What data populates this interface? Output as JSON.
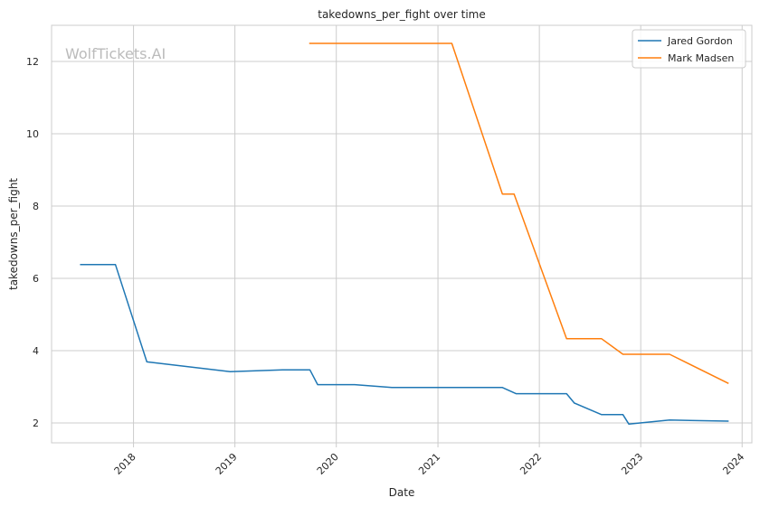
{
  "chart_data": {
    "type": "line",
    "title": "takedowns_per_fight over time",
    "xlabel": "Date",
    "ylabel": "takedowns_per_fight",
    "watermark": "WolfTickets.AI",
    "xlim": [
      "2017-03-12",
      "2024-02-05"
    ],
    "ylim": [
      1.45,
      13.0
    ],
    "x_ticks": [
      {
        "label": "2018",
        "date": "2018-01-01"
      },
      {
        "label": "2019",
        "date": "2019-01-01"
      },
      {
        "label": "2020",
        "date": "2020-01-01"
      },
      {
        "label": "2021",
        "date": "2021-01-01"
      },
      {
        "label": "2022",
        "date": "2022-01-01"
      },
      {
        "label": "2023",
        "date": "2023-01-01"
      },
      {
        "label": "2024",
        "date": "2024-01-01"
      }
    ],
    "y_ticks": [
      2,
      4,
      6,
      8,
      10,
      12
    ],
    "grid": true,
    "legend_position": "top-right",
    "series": [
      {
        "name": "Jared Gordon",
        "color": "#1f77b4",
        "points": [
          {
            "x": "2017-06-25",
            "y": 6.38
          },
          {
            "x": "2017-10-28",
            "y": 6.38
          },
          {
            "x": "2018-02-18",
            "y": 3.69
          },
          {
            "x": "2018-12-15",
            "y": 3.42
          },
          {
            "x": "2019-06-22",
            "y": 3.47
          },
          {
            "x": "2019-09-28",
            "y": 3.47
          },
          {
            "x": "2019-10-26",
            "y": 3.06
          },
          {
            "x": "2020-03-07",
            "y": 3.06
          },
          {
            "x": "2020-07-19",
            "y": 2.98
          },
          {
            "x": "2021-08-21",
            "y": 2.98
          },
          {
            "x": "2021-10-09",
            "y": 2.81
          },
          {
            "x": "2022-04-09",
            "y": 2.81
          },
          {
            "x": "2022-05-07",
            "y": 2.55
          },
          {
            "x": "2022-08-13",
            "y": 2.23
          },
          {
            "x": "2022-10-29",
            "y": 2.23
          },
          {
            "x": "2022-11-19",
            "y": 1.97
          },
          {
            "x": "2023-04-15",
            "y": 2.08
          },
          {
            "x": "2023-11-11",
            "y": 2.05
          }
        ]
      },
      {
        "name": "Mark Madsen",
        "color": "#ff7f0e",
        "points": [
          {
            "x": "2019-09-28",
            "y": 12.5
          },
          {
            "x": "2021-02-20",
            "y": 12.5
          },
          {
            "x": "2021-08-21",
            "y": 8.33
          },
          {
            "x": "2021-10-02",
            "y": 8.33
          },
          {
            "x": "2022-04-09",
            "y": 4.33
          },
          {
            "x": "2022-08-13",
            "y": 4.33
          },
          {
            "x": "2022-10-29",
            "y": 3.9
          },
          {
            "x": "2023-04-15",
            "y": 3.9
          },
          {
            "x": "2023-11-11",
            "y": 3.1
          }
        ]
      }
    ]
  }
}
